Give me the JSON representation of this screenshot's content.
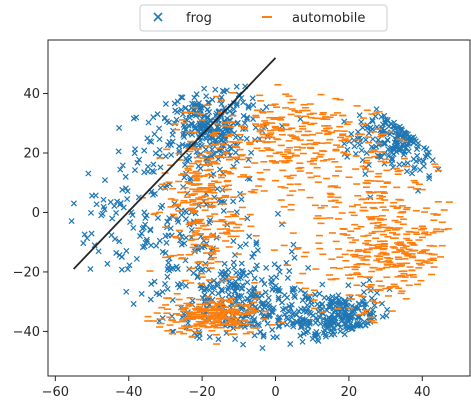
{
  "chart_data": {
    "type": "scatter",
    "title": "",
    "xlabel": "",
    "ylabel": "",
    "xlim": [
      -62,
      53
    ],
    "ylim": [
      -55,
      58
    ],
    "xticks": [
      -60,
      -40,
      -20,
      0,
      20,
      40
    ],
    "yticks": [
      -40,
      -20,
      0,
      20,
      40
    ],
    "xtick_labels": [
      "−60",
      "−40",
      "−20",
      "0",
      "20",
      "40"
    ],
    "ytick_labels": [
      "−40",
      "−20",
      "0",
      "20",
      "40"
    ],
    "legend_position": "top-center",
    "series": [
      {
        "name": "frog",
        "marker": "x",
        "color": "#1f77b4",
        "approx_point_count": 5000,
        "regions": [
          {
            "cx": -30,
            "cy": 0,
            "rx": 24,
            "ry": 30
          },
          {
            "cx": -10,
            "cy": -30,
            "rx": 18,
            "ry": 14
          },
          {
            "cx": -18,
            "cy": 30,
            "rx": 12,
            "ry": 12
          },
          {
            "cx": 15,
            "cy": -35,
            "rx": 14,
            "ry": 8
          },
          {
            "cx": 35,
            "cy": 25,
            "rx": 12,
            "ry": 10
          }
        ]
      },
      {
        "name": "automobile",
        "marker": "_",
        "color": "#ff7f0e",
        "approx_point_count": 5000,
        "regions": [
          {
            "cx": 22,
            "cy": 0,
            "rx": 26,
            "ry": 34
          },
          {
            "cx": 5,
            "cy": 25,
            "rx": 20,
            "ry": 14
          },
          {
            "cx": -20,
            "cy": 5,
            "rx": 10,
            "ry": 25
          },
          {
            "cx": 35,
            "cy": -15,
            "rx": 16,
            "ry": 18
          },
          {
            "cx": -18,
            "cy": -35,
            "rx": 12,
            "ry": 6
          }
        ]
      }
    ],
    "annotation_line": {
      "color": "#262626",
      "x": [
        -55,
        0
      ],
      "y": [
        -19,
        52
      ]
    }
  }
}
